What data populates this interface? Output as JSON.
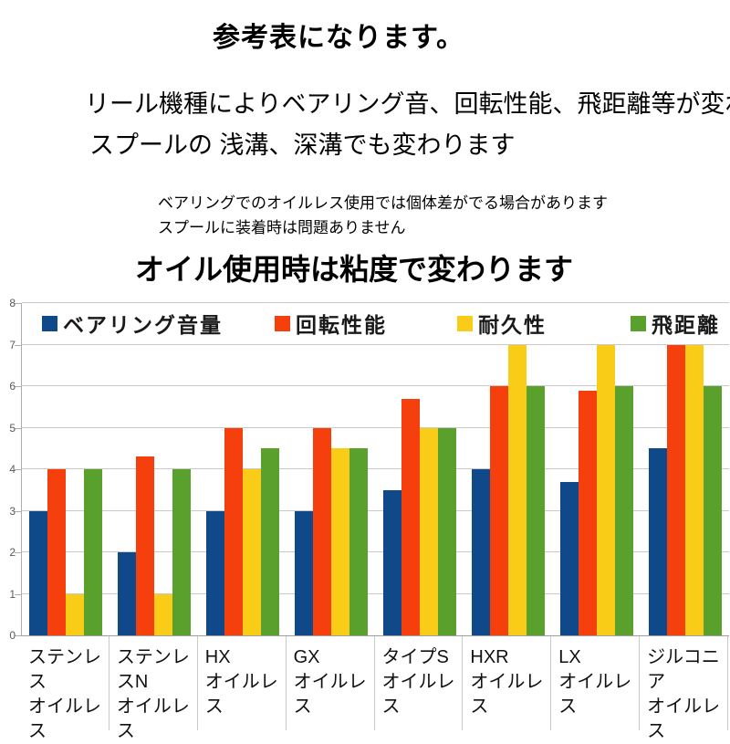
{
  "header": {
    "title": "参考表になります。",
    "description_line1": "リール機種によりベアリング音、回転性能、飛距離等が変わります。",
    "description_line2": "スプールの 浅溝、深溝でも変わります",
    "note_line1": "ベアリングでのオイルレス使用では個体差がでる場合があります",
    "note_line2": "スプールに装着時は問題ありません",
    "chart_subtitle": "オイル使用時は粘度で変わります"
  },
  "chart_data": {
    "type": "bar",
    "title": "オイル使用時は粘度で変わります",
    "categories": [
      {
        "name": "ステンレス",
        "sub": "オイルレス"
      },
      {
        "name": "ステンレスN",
        "sub": "オイルレス"
      },
      {
        "name": "HX",
        "sub": "オイルレス"
      },
      {
        "name": "GX",
        "sub": "オイルレス"
      },
      {
        "name": "タイプS",
        "sub": "オイルレス"
      },
      {
        "name": "HXR",
        "sub": "オイルレス"
      },
      {
        "name": "LX",
        "sub": "オイルレス"
      },
      {
        "name": "ジルコニア",
        "sub": "オイルレス"
      }
    ],
    "series": [
      {
        "name": "ベアリング音量",
        "color": "#10498a",
        "values": [
          3,
          2,
          3,
          3,
          3.5,
          4,
          3.7,
          4.5
        ]
      },
      {
        "name": "回転性能",
        "color": "#f5400e",
        "values": [
          4,
          4.3,
          5,
          5,
          5.7,
          6,
          5.9,
          7
        ]
      },
      {
        "name": "耐久性",
        "color": "#f9cd17",
        "values": [
          1,
          1,
          4,
          4.5,
          5,
          7,
          7,
          7
        ]
      },
      {
        "name": "飛距離",
        "color": "#5aa02c",
        "values": [
          4,
          4,
          4.5,
          4.5,
          5,
          6,
          6,
          6
        ]
      }
    ],
    "ylim": [
      0,
      8
    ],
    "ytick_step": 1,
    "grid": true,
    "legend_position": "top-inside",
    "colors": {
      "gridline": "#c9c9c9",
      "axis": "#9d9d9d",
      "y_label": "#595959"
    }
  }
}
